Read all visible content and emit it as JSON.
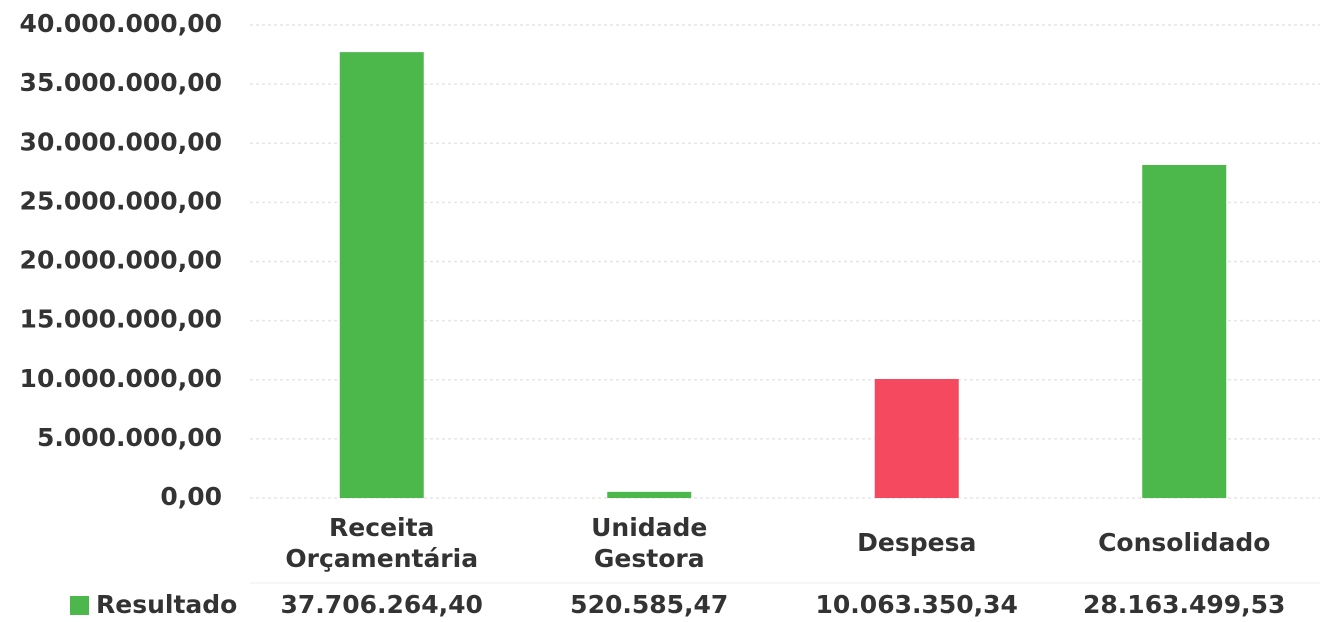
{
  "chart_data": {
    "type": "bar",
    "categories": [
      "Receita Orçamentária",
      "Unidade Gestora",
      "Despesa",
      "Consolidado"
    ],
    "series": [
      {
        "name": "Resultado",
        "color": "#4cb74b",
        "colors": [
          "#4cb74b",
          "#4cb74b",
          "#f4495e",
          "#4cb74b"
        ],
        "values": [
          37706264.4,
          520585.47,
          10063350.34,
          28163499.53
        ],
        "value_labels": [
          "37.706.264,40",
          "520.585,47",
          "10.063.350,34",
          "28.163.499,53"
        ]
      }
    ],
    "ylim": [
      0,
      40000000
    ],
    "yticks": [
      {
        "value": 0,
        "label": "0,00"
      },
      {
        "value": 5000000,
        "label": "5.000.000,00"
      },
      {
        "value": 10000000,
        "label": "10.000.000,00"
      },
      {
        "value": 15000000,
        "label": "15.000.000,00"
      },
      {
        "value": 20000000,
        "label": "20.000.000,00"
      },
      {
        "value": 25000000,
        "label": "25.000.000,00"
      },
      {
        "value": 30000000,
        "label": "30.000.000,00"
      },
      {
        "value": 35000000,
        "label": "35.000.000,00"
      },
      {
        "value": 40000000,
        "label": "40.000.000,00"
      }
    ],
    "grid": true
  }
}
